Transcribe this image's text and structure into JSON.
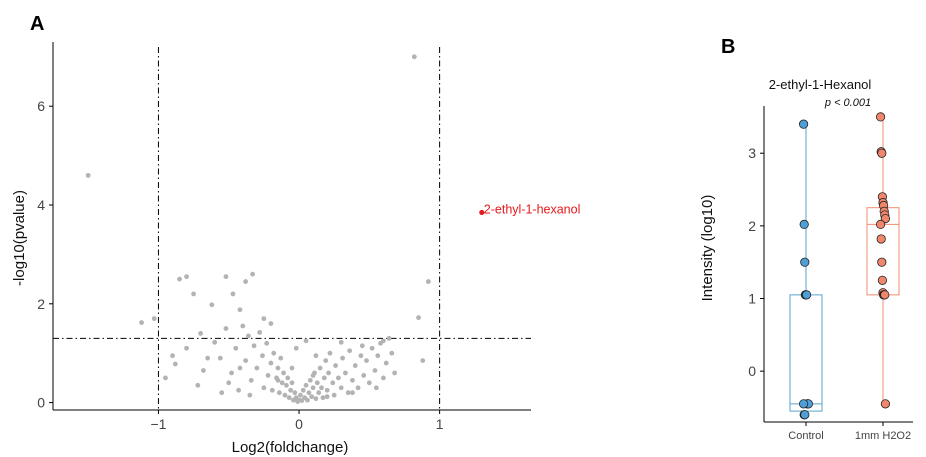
{
  "colors": {
    "point_gray": "#b3b3b3",
    "highlight": "#e41a1c",
    "control_fill": "#4f9fd6",
    "control_box": "#5aa3cf",
    "treatment_fill": "#f0866b",
    "treatment_box": "#f08c72",
    "axis": "#000000"
  },
  "chart_data": [
    {
      "type": "scatter",
      "panel_label": "A",
      "xlabel": "Log2(foldchange)",
      "ylabel": "-log10(pvalue)",
      "xlim": [
        -1.75,
        1.65
      ],
      "ylim": [
        -0.15,
        7.3
      ],
      "x_ticks": [
        -1,
        0,
        1
      ],
      "x_tick_labels": [
        "−1",
        "0",
        "1"
      ],
      "y_ticks": [
        0,
        2,
        4,
        6
      ],
      "y_tick_labels": [
        "0",
        "2",
        "4",
        "6"
      ],
      "reference_lines": {
        "vertical": [
          -1,
          1
        ],
        "horizontal": [
          1.3
        ]
      },
      "highlight": {
        "label": "2-ethyl-1-hexanol",
        "x": 1.3,
        "y": 3.85
      },
      "points": [
        [
          -1.5,
          4.6
        ],
        [
          -1.12,
          1.62
        ],
        [
          -1.03,
          1.7
        ],
        [
          -0.95,
          0.5
        ],
        [
          -0.85,
          2.5
        ],
        [
          -0.8,
          2.55
        ],
        [
          -0.75,
          2.2
        ],
        [
          -0.7,
          1.4
        ],
        [
          -0.62,
          1.98
        ],
        [
          -0.52,
          2.55
        ],
        [
          -0.47,
          2.2
        ],
        [
          -0.42,
          1.88
        ],
        [
          -0.38,
          2.45
        ],
        [
          -0.33,
          2.6
        ],
        [
          -0.88,
          0.78
        ],
        [
          -0.8,
          1.1
        ],
        [
          -0.72,
          0.35
        ],
        [
          -0.68,
          0.65
        ],
        [
          -0.6,
          1.22
        ],
        [
          -0.56,
          0.9
        ],
        [
          -0.52,
          1.5
        ],
        [
          -0.48,
          0.6
        ],
        [
          -0.45,
          1.1
        ],
        [
          -0.43,
          0.25
        ],
        [
          -0.4,
          1.55
        ],
        [
          -0.38,
          0.85
        ],
        [
          -0.36,
          1.35
        ],
        [
          -0.34,
          0.45
        ],
        [
          -0.32,
          1.15
        ],
        [
          -0.3,
          0.7
        ],
        [
          -0.28,
          1.42
        ],
        [
          -0.26,
          0.95
        ],
        [
          -0.25,
          0.3
        ],
        [
          -0.23,
          1.2
        ],
        [
          -0.22,
          0.55
        ],
        [
          -0.2,
          0.8
        ],
        [
          -0.19,
          0.25
        ],
        [
          -0.18,
          1.0
        ],
        [
          -0.16,
          0.5
        ],
        [
          -0.15,
          0.7
        ],
        [
          -0.14,
          0.2
        ],
        [
          -0.13,
          0.9
        ],
        [
          -0.12,
          0.4
        ],
        [
          -0.11,
          0.6
        ],
        [
          -0.1,
          0.15
        ],
        [
          -0.09,
          0.35
        ],
        [
          -0.08,
          0.5
        ],
        [
          -0.07,
          0.1
        ],
        [
          -0.06,
          0.25
        ],
        [
          -0.05,
          0.4
        ],
        [
          -0.04,
          0.05
        ],
        [
          -0.03,
          0.2
        ],
        [
          -0.02,
          0.1
        ],
        [
          -0.01,
          0.02
        ],
        [
          0.0,
          0.05
        ],
        [
          0.01,
          0.15
        ],
        [
          0.02,
          0.04
        ],
        [
          0.03,
          0.25
        ],
        [
          0.04,
          0.1
        ],
        [
          0.05,
          0.35
        ],
        [
          0.06,
          0.05
        ],
        [
          0.07,
          0.2
        ],
        [
          0.08,
          0.45
        ],
        [
          0.09,
          0.12
        ],
        [
          0.1,
          0.3
        ],
        [
          0.11,
          0.6
        ],
        [
          0.12,
          0.08
        ],
        [
          0.13,
          0.4
        ],
        [
          0.14,
          0.2
        ],
        [
          0.15,
          0.7
        ],
        [
          0.16,
          0.3
        ],
        [
          0.17,
          0.1
        ],
        [
          0.18,
          0.5
        ],
        [
          0.19,
          0.85
        ],
        [
          0.2,
          0.25
        ],
        [
          0.21,
          0.6
        ],
        [
          0.22,
          1.0
        ],
        [
          0.24,
          0.4
        ],
        [
          0.25,
          0.15
        ],
        [
          0.26,
          0.75
        ],
        [
          0.28,
          0.5
        ],
        [
          0.3,
          0.3
        ],
        [
          0.31,
          0.9
        ],
        [
          0.33,
          0.6
        ],
        [
          0.35,
          0.2
        ],
        [
          0.36,
          1.05
        ],
        [
          0.38,
          0.45
        ],
        [
          0.4,
          0.75
        ],
        [
          0.42,
          0.3
        ],
        [
          0.44,
          0.95
        ],
        [
          0.46,
          0.55
        ],
        [
          0.48,
          0.85
        ],
        [
          0.5,
          0.4
        ],
        [
          0.52,
          1.1
        ],
        [
          0.54,
          0.65
        ],
        [
          0.56,
          0.95
        ],
        [
          0.58,
          1.2
        ],
        [
          0.6,
          0.5
        ],
        [
          0.62,
          0.8
        ],
        [
          0.64,
          1.3
        ],
        [
          0.66,
          1.0
        ],
        [
          0.68,
          0.6
        ],
        [
          -0.02,
          1.1
        ],
        [
          0.05,
          1.25
        ],
        [
          0.12,
          0.95
        ],
        [
          0.82,
          7.0
        ],
        [
          0.92,
          2.45
        ],
        [
          0.85,
          1.72
        ],
        [
          0.88,
          0.85
        ],
        [
          -0.2,
          1.6
        ],
        [
          -0.5,
          0.4
        ],
        [
          -0.65,
          0.9
        ],
        [
          -0.55,
          0.2
        ],
        [
          -0.25,
          1.7
        ],
        [
          0.3,
          1.22
        ],
        [
          0.45,
          1.15
        ],
        [
          0.6,
          1.25
        ],
        [
          -0.9,
          0.95
        ],
        [
          -0.35,
          0.15
        ],
        [
          0.1,
          0.55
        ],
        [
          -0.15,
          0.45
        ],
        [
          0.2,
          0.12
        ],
        [
          -0.05,
          0.7
        ],
        [
          0.38,
          0.2
        ],
        [
          -0.42,
          0.7
        ],
        [
          0.55,
          0.3
        ]
      ]
    },
    {
      "type": "box",
      "panel_label": "B",
      "title": "2-ethyl-1-Hexanol",
      "annotation": "p < 0.001",
      "ylabel": "Intensity (log10)",
      "ylim": [
        -0.7,
        3.65
      ],
      "y_ticks": [
        0,
        1,
        2,
        3
      ],
      "y_tick_labels": [
        "0",
        "1",
        "2",
        "3"
      ],
      "categories": [
        "Control",
        "1mm H2O2"
      ],
      "groups": [
        {
          "name": "Control",
          "box": {
            "q1": -0.55,
            "median": -0.45,
            "q3": 1.05,
            "lower": -0.6,
            "upper": 3.4
          },
          "points": [
            3.4,
            2.02,
            1.5,
            1.05,
            1.05,
            1.05,
            -0.45,
            -0.45,
            -0.45,
            -0.45,
            -0.6,
            -0.6
          ]
        },
        {
          "name": "1mm H2O2",
          "box": {
            "q1": 1.05,
            "median": 2.02,
            "q3": 2.25,
            "lower": -0.45,
            "upper": 3.5
          },
          "points": [
            3.5,
            3.02,
            3.0,
            2.4,
            2.32,
            2.28,
            2.2,
            2.15,
            2.1,
            2.02,
            1.82,
            1.5,
            1.25,
            1.08,
            1.05,
            1.05,
            1.05,
            -0.45
          ]
        }
      ]
    }
  ]
}
